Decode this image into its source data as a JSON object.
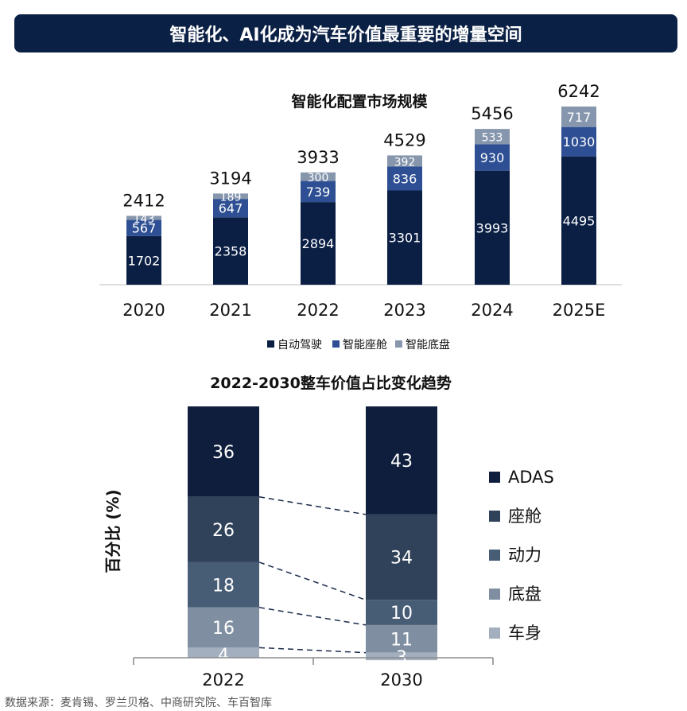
{
  "banner_title": "智能化、AI化成为汽车价值最重要的增量空间",
  "source": "数据来源：麦肯锡、罗兰贝格、中商研究院、车百智库",
  "colors": {
    "banner": "#0b2045",
    "ads": "#0b1f45",
    "cockpit": "#2e4f93",
    "chassis": "#8696ad",
    "adas": "#0f1e3c",
    "cabin2": "#2f4259",
    "power": "#475c75",
    "chassis2": "#7f8ea0",
    "body": "#a3afbe"
  },
  "chart_data": [
    {
      "type": "bar",
      "stacked": true,
      "title": "智能化配置市场规模",
      "categories": [
        "2020",
        "2021",
        "2022",
        "2023",
        "2024",
        "2025E"
      ],
      "totals": [
        "2412",
        "3194",
        "3933",
        "4529",
        "5456",
        "6242"
      ],
      "series": [
        {
          "name": "自动驾驶",
          "values": [
            1702,
            2358,
            2894,
            3301,
            3993,
            4495
          ]
        },
        {
          "name": "智能座舱",
          "values": [
            567,
            647,
            739,
            836,
            930,
            1030
          ]
        },
        {
          "name": "智能底盘",
          "values": [
            143,
            189,
            300,
            392,
            533,
            717
          ]
        }
      ],
      "legend_position": "bottom"
    },
    {
      "type": "bar",
      "stacked": true,
      "percent": true,
      "title": "2022-2030整车价值占比变化趋势",
      "ylabel": "百分比 (%)",
      "categories": [
        "2022",
        "2030"
      ],
      "series": [
        {
          "name": "ADAS",
          "values": [
            36,
            43
          ]
        },
        {
          "name": "座舱",
          "values": [
            26,
            34
          ]
        },
        {
          "name": "动力",
          "values": [
            18,
            10
          ]
        },
        {
          "name": "底盘",
          "values": [
            16,
            11
          ]
        },
        {
          "name": "车身",
          "values": [
            4,
            3
          ]
        }
      ],
      "legend_position": "right"
    }
  ]
}
